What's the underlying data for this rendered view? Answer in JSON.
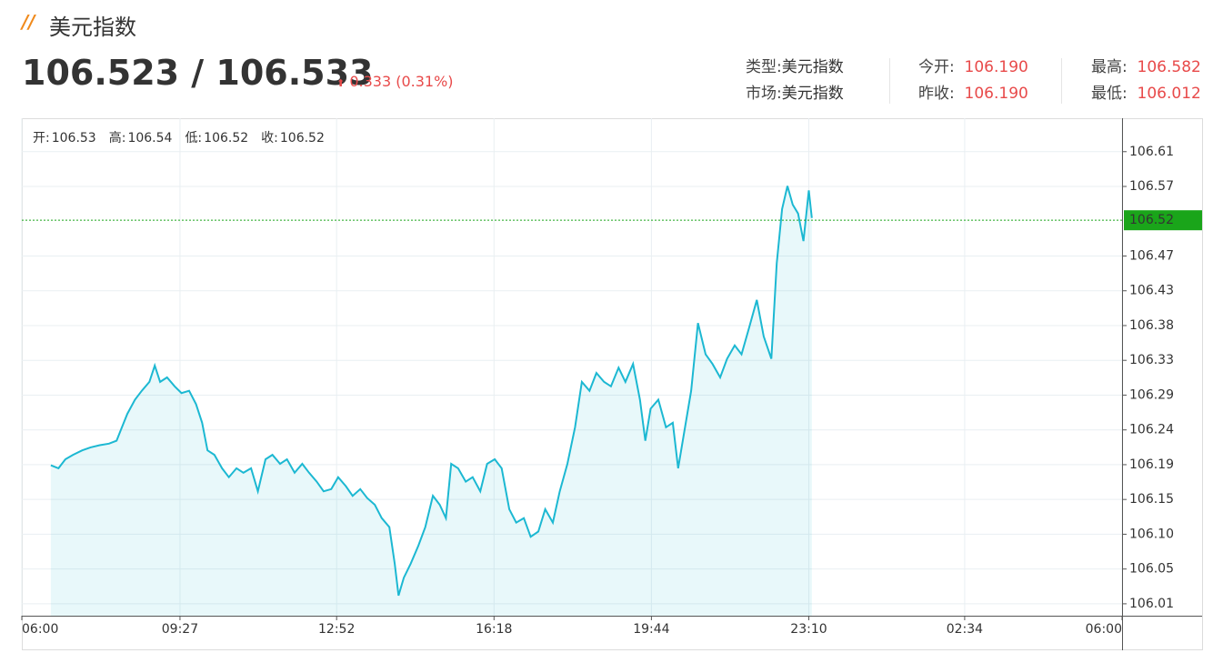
{
  "header": {
    "logo": "//",
    "title": "美元指数",
    "price": "106.523 / 106.533",
    "change_arrow": "⬆",
    "change": "0.333 (0.31%)",
    "info": [
      [
        {
          "key": "类型:",
          "value": "美元指数"
        },
        {
          "key": "市场:",
          "value": "美元指数"
        }
      ],
      [
        {
          "key": "今开:",
          "value": "106.190"
        },
        {
          "key": "昨收:",
          "value": "106.190"
        }
      ],
      [
        {
          "key": "最高:",
          "value": "106.582"
        },
        {
          "key": "最低:",
          "value": "106.012"
        }
      ]
    ]
  },
  "chart_data": {
    "type": "area",
    "ohlc": [
      {
        "label": "开:",
        "value": 106.53
      },
      {
        "label": "高:",
        "value": 106.54
      },
      {
        "label": "低:",
        "value": 106.52
      },
      {
        "label": "收:",
        "value": 106.52
      }
    ],
    "reference_line": 106.52,
    "reference_color": "#1aa51a",
    "xlim": [
      0,
      1440
    ],
    "xticks": [
      {
        "value": 0,
        "label": "06:00"
      },
      {
        "value": 207,
        "label": "09:27"
      },
      {
        "value": 412,
        "label": "12:52"
      },
      {
        "value": 618,
        "label": "16:18"
      },
      {
        "value": 824,
        "label": "19:44"
      },
      {
        "value": 1030,
        "label": "23:10"
      },
      {
        "value": 1234,
        "label": "02:34"
      },
      {
        "value": 1440,
        "label": "06:00"
      }
    ],
    "ylim": [
      105.989,
      106.657
    ],
    "yticks": [
      {
        "value": 106.005,
        "label": "106.01"
      },
      {
        "value": 106.0517,
        "label": "106.05"
      },
      {
        "value": 106.0984,
        "label": "106.10"
      },
      {
        "value": 106.1451,
        "label": "106.15"
      },
      {
        "value": 106.1918,
        "label": "106.19"
      },
      {
        "value": 106.2385,
        "label": "106.24"
      },
      {
        "value": 106.2852,
        "label": "106.29"
      },
      {
        "value": 106.3319,
        "label": "106.33"
      },
      {
        "value": 106.3786,
        "label": "106.38"
      },
      {
        "value": 106.4253,
        "label": "106.43"
      },
      {
        "value": 106.472,
        "label": "106.47"
      },
      {
        "value": 106.5654,
        "label": "106.57"
      },
      {
        "value": 106.6121,
        "label": "106.61"
      }
    ],
    "grid": true,
    "series": [
      {
        "color": "#1cb8d2",
        "x": [
          38,
          48,
          57,
          67,
          79,
          90,
          102,
          114,
          124,
          131,
          138,
          148,
          157,
          167,
          174,
          181,
          190,
          200,
          209,
          219,
          228,
          236,
          243,
          252,
          262,
          271,
          281,
          290,
          300,
          309,
          319,
          328,
          338,
          347,
          357,
          367,
          376,
          386,
          395,
          405,
          414,
          424,
          433,
          443,
          452,
          462,
          471,
          481,
          488,
          493,
          500,
          509,
          519,
          528,
          538,
          547,
          555,
          562,
          571,
          581,
          590,
          600,
          609,
          619,
          628,
          638,
          647,
          657,
          666,
          676,
          685,
          695,
          704,
          714,
          724,
          733,
          743,
          752,
          762,
          771,
          781,
          790,
          800,
          809,
          816,
          823,
          833,
          843,
          852,
          859,
          866,
          876,
          885,
          895,
          904,
          914,
          923,
          933,
          942,
          952,
          962,
          971,
          981,
          988,
          995,
          1002,
          1009,
          1016,
          1023,
          1030,
          1034
        ],
        "values": [
          106.191,
          106.187,
          106.199,
          106.205,
          106.211,
          106.215,
          106.218,
          106.22,
          106.224,
          106.242,
          106.26,
          106.279,
          106.291,
          106.303,
          106.325,
          106.303,
          106.309,
          106.297,
          106.288,
          106.291,
          106.273,
          106.248,
          106.211,
          106.205,
          106.187,
          106.175,
          106.187,
          106.181,
          106.187,
          106.156,
          106.199,
          106.205,
          106.193,
          106.199,
          106.181,
          106.193,
          106.181,
          106.169,
          106.156,
          106.159,
          106.175,
          106.163,
          106.15,
          106.159,
          106.147,
          106.138,
          106.12,
          106.108,
          106.059,
          106.016,
          106.04,
          106.059,
          106.083,
          106.108,
          106.15,
          106.138,
          106.12,
          106.193,
          106.187,
          106.169,
          106.175,
          106.156,
          106.193,
          106.199,
          106.187,
          106.132,
          106.114,
          106.12,
          106.095,
          106.102,
          106.132,
          106.114,
          106.156,
          106.193,
          106.242,
          106.303,
          106.291,
          106.315,
          106.303,
          106.297,
          106.322,
          106.303,
          106.327,
          106.279,
          106.224,
          106.267,
          106.279,
          106.242,
          106.248,
          106.187,
          106.23,
          106.291,
          106.382,
          106.34,
          106.327,
          106.309,
          106.334,
          106.352,
          106.34,
          106.376,
          106.413,
          106.364,
          106.334,
          106.462,
          106.535,
          106.566,
          106.541,
          106.529,
          106.492,
          106.56,
          106.523
        ]
      }
    ]
  }
}
